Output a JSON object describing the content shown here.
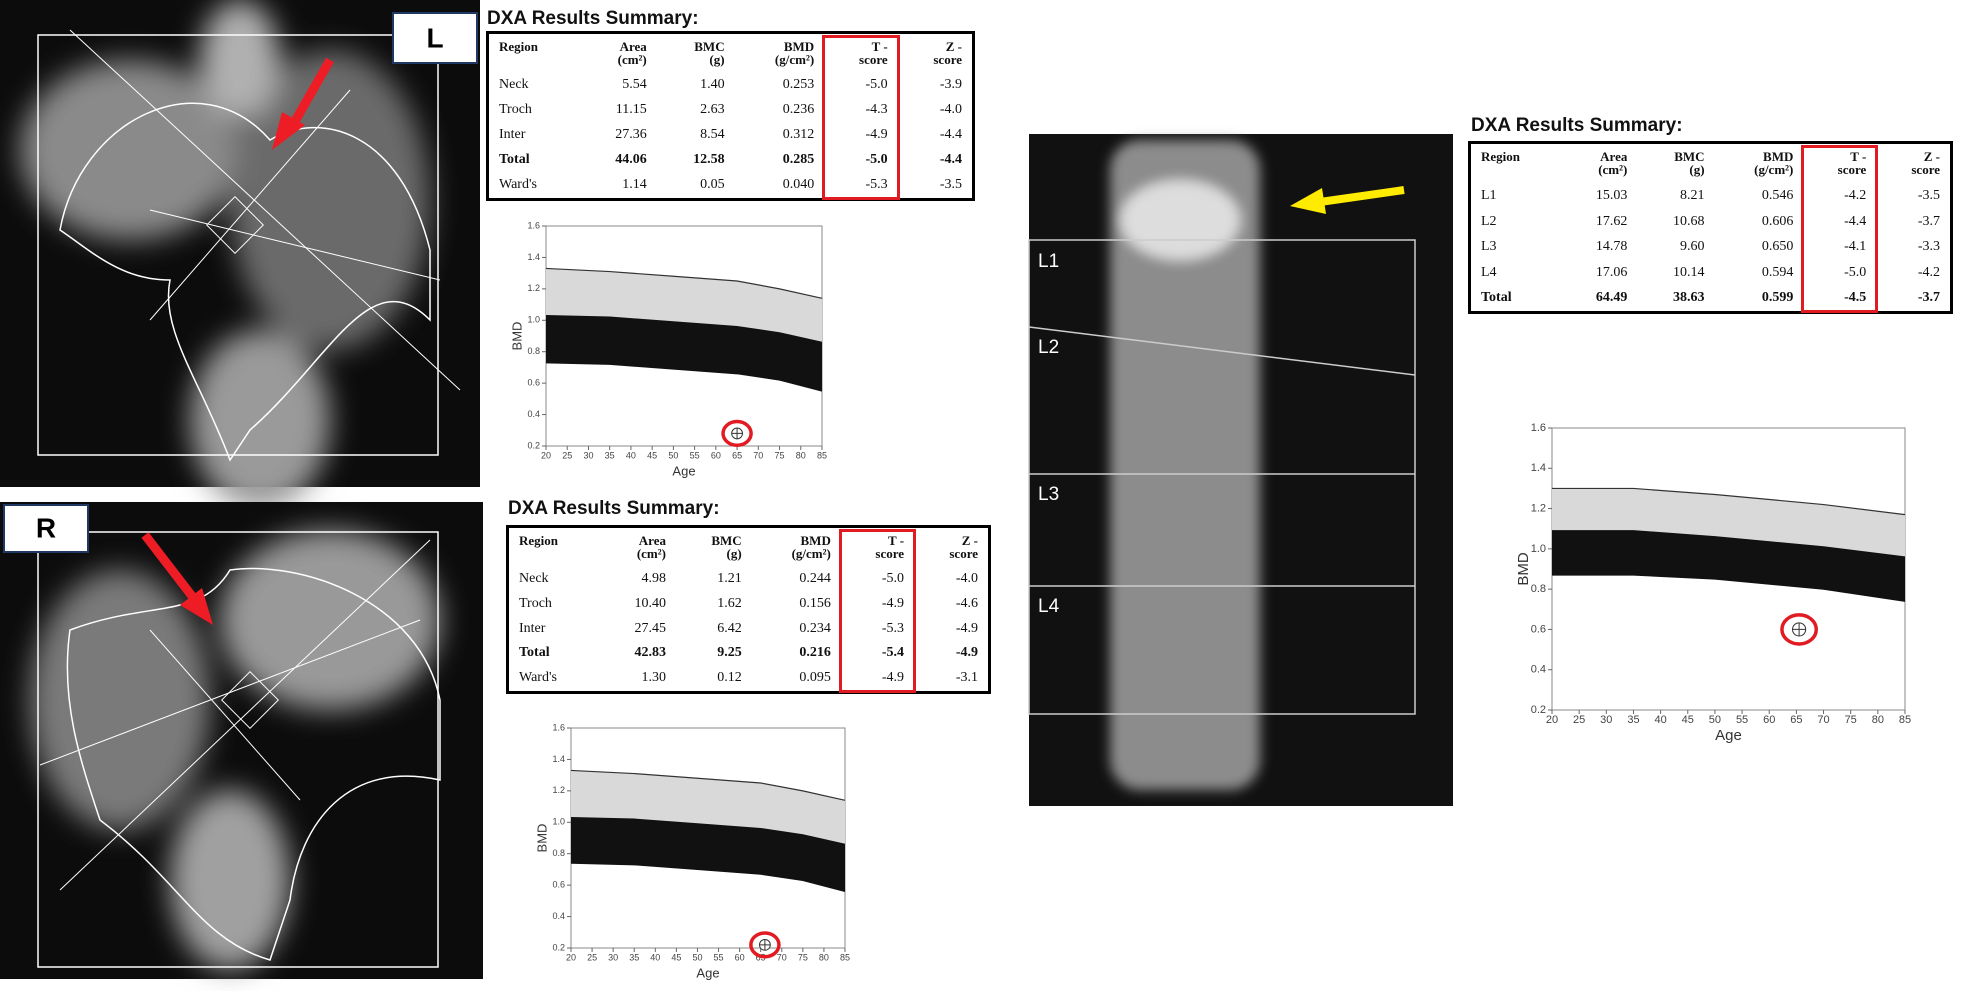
{
  "panels": {
    "left_hip_label": "L",
    "right_hip_label": "R",
    "spine_labels": [
      "L1",
      "L2",
      "L3",
      "L4"
    ]
  },
  "tables": [
    {
      "title": "DXA Results Summary:",
      "header": [
        [
          "Region"
        ],
        [
          "Area",
          "(cm²)"
        ],
        [
          "BMC",
          "(g)"
        ],
        [
          "BMD",
          "(g/cm²)"
        ],
        [
          "T -",
          "score"
        ],
        [
          "Z -",
          "score"
        ]
      ],
      "rows": [
        [
          "Neck",
          "5.54",
          "1.40",
          "0.253",
          "-5.0",
          "-3.9"
        ],
        [
          "Troch",
          "11.15",
          "2.63",
          "0.236",
          "-4.3",
          "-4.0"
        ],
        [
          "Inter",
          "27.36",
          "8.54",
          "0.312",
          "-4.9",
          "-4.4"
        ],
        [
          "Total",
          "44.06",
          "12.58",
          "0.285",
          "-5.0",
          "-4.4"
        ],
        [
          "Ward's",
          "1.14",
          "0.05",
          "0.040",
          "-5.3",
          "-3.5"
        ]
      ]
    },
    {
      "title": "DXA Results Summary:",
      "header": [
        [
          "Region"
        ],
        [
          "Area",
          "(cm²)"
        ],
        [
          "BMC",
          "(g)"
        ],
        [
          "BMD",
          "(g/cm²)"
        ],
        [
          "T -",
          "score"
        ],
        [
          "Z -",
          "score"
        ]
      ],
      "rows": [
        [
          "Neck",
          "4.98",
          "1.21",
          "0.244",
          "-5.0",
          "-4.0"
        ],
        [
          "Troch",
          "10.40",
          "1.62",
          "0.156",
          "-4.9",
          "-4.6"
        ],
        [
          "Inter",
          "27.45",
          "6.42",
          "0.234",
          "-5.3",
          "-4.9"
        ],
        [
          "Total",
          "42.83",
          "9.25",
          "0.216",
          "-5.4",
          "-4.9"
        ],
        [
          "Ward's",
          "1.30",
          "0.12",
          "0.095",
          "-4.9",
          "-3.1"
        ]
      ]
    },
    {
      "title": "DXA Results Summary:",
      "header": [
        [
          "Region"
        ],
        [
          "Area",
          "(cm²)"
        ],
        [
          "BMC",
          "(g)"
        ],
        [
          "BMD",
          "(g/cm²)"
        ],
        [
          "T -",
          "score"
        ],
        [
          "Z -",
          "score"
        ]
      ],
      "rows": [
        [
          "L1",
          "15.03",
          "8.21",
          "0.546",
          "-4.2",
          "-3.5"
        ],
        [
          "L2",
          "17.62",
          "10.68",
          "0.606",
          "-4.4",
          "-3.7"
        ],
        [
          "L3",
          "14.78",
          "9.60",
          "0.650",
          "-4.1",
          "-3.3"
        ],
        [
          "L4",
          "17.06",
          "10.14",
          "0.594",
          "-5.0",
          "-4.2"
        ],
        [
          "Total",
          "64.49",
          "38.63",
          "0.599",
          "-4.5",
          "-3.7"
        ]
      ]
    }
  ],
  "chart_data": [
    {
      "type": "band",
      "xlabel": "Age",
      "ylabel": "BMD",
      "xlim": [
        20,
        85
      ],
      "ylim": [
        0.2,
        1.6
      ],
      "xticks": [
        20,
        25,
        30,
        35,
        40,
        45,
        50,
        55,
        60,
        65,
        70,
        75,
        80,
        85
      ],
      "yticks": [
        0.2,
        0.4,
        0.6,
        0.8,
        {
          "value": 1,
          "label": "1.0"
        },
        1.2,
        1.4,
        1.6
      ],
      "x": [
        20,
        35,
        50,
        65,
        75,
        85
      ],
      "series": [
        {
          "color": "#333333",
          "values": [
            1.33,
            1.31,
            1.28,
            1.25,
            1.2,
            1.14
          ]
        },
        {
          "color": "#111111",
          "values": [
            1.03,
            1.02,
            0.99,
            0.96,
            0.92,
            0.86
          ]
        },
        {
          "color": "#111111",
          "values": [
            0.73,
            0.72,
            0.69,
            0.66,
            0.62,
            0.55
          ]
        }
      ],
      "fills": [
        "#d9d9d9",
        "#111111"
      ],
      "point": {
        "x": 65,
        "y": 0.28
      }
    },
    {
      "type": "band",
      "xlabel": "Age",
      "ylabel": "BMD",
      "xlim": [
        20,
        85
      ],
      "ylim": [
        0.2,
        1.6
      ],
      "xticks": [
        20,
        25,
        30,
        35,
        40,
        45,
        50,
        55,
        60,
        65,
        70,
        75,
        80,
        85
      ],
      "yticks": [
        0.2,
        0.4,
        0.6,
        0.8,
        {
          "value": 1,
          "label": "1.0"
        },
        1.2,
        1.4,
        1.6
      ],
      "x": [
        20,
        35,
        50,
        65,
        75,
        85
      ],
      "series": [
        {
          "color": "#333333",
          "values": [
            1.33,
            1.31,
            1.28,
            1.25,
            1.2,
            1.14
          ]
        },
        {
          "color": "#111111",
          "values": [
            1.03,
            1.02,
            0.99,
            0.96,
            0.92,
            0.86
          ]
        },
        {
          "color": "#111111",
          "values": [
            0.74,
            0.73,
            0.7,
            0.67,
            0.63,
            0.56
          ]
        }
      ],
      "fills": [
        "#d9d9d9",
        "#111111"
      ],
      "point": {
        "x": 66,
        "y": 0.22
      }
    },
    {
      "type": "band",
      "xlabel": "Age",
      "ylabel": "BMD",
      "xlim": [
        20,
        85
      ],
      "ylim": [
        0.2,
        1.6
      ],
      "xticks": [
        20,
        25,
        30,
        35,
        40,
        45,
        50,
        55,
        60,
        65,
        70,
        75,
        80,
        85
      ],
      "yticks": [
        0.2,
        0.4,
        0.6,
        0.8,
        {
          "value": 1,
          "label": "1.0"
        },
        1.2,
        1.4,
        1.6
      ],
      "x": [
        20,
        35,
        50,
        70,
        85
      ],
      "series": [
        {
          "color": "#333333",
          "values": [
            1.3,
            1.3,
            1.27,
            1.22,
            1.17
          ]
        },
        {
          "color": "#111111",
          "values": [
            1.09,
            1.09,
            1.06,
            1.01,
            0.96
          ]
        },
        {
          "color": "#111111",
          "values": [
            0.87,
            0.87,
            0.85,
            0.8,
            0.74
          ]
        }
      ],
      "fills": [
        "#d9d9d9",
        "#111111"
      ],
      "point": {
        "x": 65.5,
        "y": 0.6
      }
    }
  ]
}
